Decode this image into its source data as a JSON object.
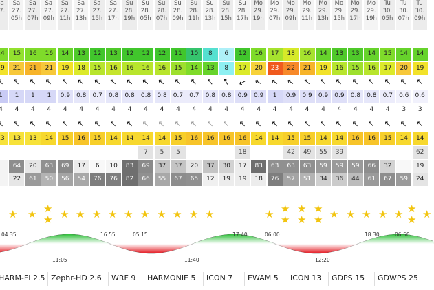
{
  "header": {
    "days": [
      "Sa",
      "Sa",
      "Sa",
      "Sa",
      "Sa",
      "Sa",
      "Sa",
      "Sa",
      "Su",
      "Su",
      "Su",
      "Su",
      "Su",
      "Su",
      "Su",
      "Su",
      "Mo",
      "Mo",
      "Mo",
      "Mo",
      "Mo",
      "Mo",
      "Mo",
      "Mo",
      "Tu",
      "Tu",
      "Tu"
    ],
    "dates": [
      "27.",
      "27.",
      "27.",
      "27.",
      "27.",
      "27.",
      "27.",
      "27.",
      "28.",
      "28.",
      "28.",
      "28.",
      "28.",
      "28.",
      "28.",
      "28.",
      "29.",
      "29.",
      "29.",
      "29.",
      "29.",
      "29.",
      "29.",
      "29.",
      "30.",
      "30.",
      "30."
    ],
    "hours": [
      "",
      "05h",
      "07h",
      "09h",
      "11h",
      "13h",
      "15h",
      "17h",
      "19h",
      "05h",
      "07h",
      "09h",
      "11h",
      "13h",
      "15h",
      "17h",
      "19h",
      "07h",
      "09h",
      "11h",
      "13h",
      "15h",
      "17h",
      "19h",
      "05h",
      "07h",
      "09h"
    ]
  },
  "rows": {
    "wind": {
      "values": [
        "14",
        "15",
        "16",
        "16",
        "14",
        "13",
        "12",
        "13",
        "12",
        "12",
        "12",
        "11",
        "10",
        "8",
        "6",
        "12",
        "16",
        "17",
        "18",
        "16",
        "14",
        "13",
        "13",
        "14",
        "15",
        "14",
        "14"
      ],
      "colors": [
        "#7fdb2a",
        "#93e12e",
        "#7fdb2a",
        "#7fdb2a",
        "#66d32b",
        "#4fc92a",
        "#41c62c",
        "#4fc92a",
        "#41c62c",
        "#41c62c",
        "#41c62c",
        "#41c62c",
        "#35c46d",
        "#55e0d0",
        "#aef0f8",
        "#41c62c",
        "#7fdb2a",
        "#a6e22e",
        "#d6ea29",
        "#a6e22e",
        "#66d32b",
        "#4fc92a",
        "#4fc92a",
        "#66d32b",
        "#7fdb2a",
        "#66d32b",
        "#66d32b"
      ]
    },
    "gust": {
      "values": [
        "19",
        "21",
        "21",
        "21",
        "19",
        "18",
        "15",
        "16",
        "16",
        "16",
        "16",
        "15",
        "14",
        "13",
        "8",
        "17",
        "20",
        "23",
        "22",
        "21",
        "19",
        "16",
        "15",
        "16",
        "17",
        "20",
        "19"
      ],
      "colors": [
        "#f2e22a",
        "#f7c83a",
        "#f7b42a",
        "#f7c83a",
        "#f2e22a",
        "#dcea2a",
        "#b8e52d",
        "#c6e52d",
        "#b8e52d",
        "#b8e52d",
        "#b8e52d",
        "#9ee02e",
        "#7fdb2a",
        "#66d32b",
        "#8ef0f2",
        "#dcea2a",
        "#f7d23a",
        "#f05a1e",
        "#f7892a",
        "#f7b42a",
        "#f2e22a",
        "#b8e52d",
        "#9ee02e",
        "#b8e52d",
        "#dcea2a",
        "#f7c83a",
        "#f2e22a"
      ]
    },
    "winddir": {
      "rotations": [
        -45,
        -45,
        -45,
        -45,
        -45,
        -50,
        -50,
        -50,
        -50,
        -50,
        -50,
        -45,
        -40,
        -40,
        -30,
        -120,
        -60,
        -55,
        -55,
        -50,
        -45,
        -45,
        -45,
        -45,
        -45,
        -45,
        -45
      ]
    },
    "waves": {
      "values": [
        "1",
        "1",
        "1",
        "1",
        "0.9",
        "0.8",
        "0.7",
        "0.8",
        "0.8",
        "0.8",
        "0.8",
        "0.7",
        "0.7",
        "0.8",
        "0.8",
        "0.9",
        "0.9",
        "1",
        "0.9",
        "0.9",
        "0.9",
        "0.9",
        "0.8",
        "0.8",
        "0.7",
        "0.6",
        "0.6"
      ],
      "colors": [
        "#c9cbf5",
        "#d6d8f7",
        "#d6d8f7",
        "#d6d8f7",
        "#e1e2f9",
        "#e6e7fa",
        "#ececfb",
        "#e6e7fa",
        "#e6e7fa",
        "#e6e7fa",
        "#e6e7fa",
        "#ececfb",
        "#ececfb",
        "#e6e7fa",
        "#e6e7fa",
        "#dedff8",
        "#dedff8",
        "#d6d8f7",
        "#dedff8",
        "#dedff8",
        "#dedff8",
        "#dedff8",
        "#e6e7fa",
        "#e6e7fa",
        "#ececfb",
        "#f1f1fc",
        "#f1f1fc"
      ]
    },
    "period": {
      "values": [
        "4",
        "4",
        "4",
        "4",
        "4",
        "4",
        "4",
        "4",
        "4",
        "4",
        "4",
        "4",
        "4",
        "4",
        "4",
        "4",
        "4",
        "4",
        "4",
        "4",
        "4",
        "4",
        "4",
        "4",
        "4",
        "3",
        "3"
      ]
    },
    "wavedir": {
      "rotations": [
        -45,
        -45,
        -45,
        -45,
        -45,
        -45,
        -45,
        -45,
        -45,
        -45,
        -45,
        -45,
        -45,
        -45,
        -45,
        -45,
        -45,
        -45,
        -45,
        -45,
        -45,
        -45,
        -45,
        -45,
        -45,
        -45,
        -45
      ],
      "greyed": [
        false,
        false,
        false,
        false,
        false,
        false,
        false,
        false,
        false,
        true,
        true,
        true,
        true,
        true,
        true,
        false,
        false,
        false,
        false,
        false,
        false,
        false,
        false,
        false,
        false,
        false,
        false
      ]
    },
    "temp": {
      "values": [
        "13",
        "13",
        "13",
        "14",
        "15",
        "16",
        "15",
        "14",
        "14",
        "14",
        "14",
        "15",
        "16",
        "16",
        "16",
        "16",
        "14",
        "14",
        "15",
        "15",
        "14",
        "14",
        "16",
        "16",
        "15",
        "14",
        "14"
      ],
      "colors": [
        "#f7e23a",
        "#f7e23a",
        "#f7e23a",
        "#f7d82e",
        "#f7cf2a",
        "#f7c42a",
        "#f7cf2a",
        "#f7d82e",
        "#f7d82e",
        "#f7d82e",
        "#f7d82e",
        "#f7cf2a",
        "#f7c42a",
        "#f7c42a",
        "#f7c42a",
        "#f7c42a",
        "#f7d82e",
        "#f7d82e",
        "#f7cf2a",
        "#f7cf2a",
        "#f7d82e",
        "#f7d82e",
        "#f7c42a",
        "#f7c42a",
        "#f7cf2a",
        "#f7d82e",
        "#f7d82e"
      ]
    },
    "rain": {
      "values": [
        "",
        "",
        "",
        "",
        "",
        "",
        "",
        "",
        "",
        "7",
        "5",
        "5",
        "",
        "",
        "",
        "18",
        "",
        "",
        "42",
        "49",
        "55",
        "39",
        "",
        "",
        "",
        "",
        "62"
      ]
    },
    "cloud_high": {
      "values": [
        "",
        "64",
        "20",
        "63",
        "69",
        "17",
        "6",
        "10",
        "83",
        "69",
        "37",
        "37",
        "20",
        "37",
        "30",
        "17",
        "83",
        "63",
        "63",
        "63",
        "59",
        "59",
        "59",
        "66",
        "32",
        "",
        "19"
      ],
      "colors": [
        "#f4f4f4",
        "#8d8d8d",
        "#e6e6e6",
        "#909090",
        "#8a8a8a",
        "#ececec",
        "#f8f8f8",
        "#f4f4f4",
        "#6f6f6f",
        "#8a8a8a",
        "#c4c4c4",
        "#c4c4c4",
        "#e6e6e6",
        "#c4c4c4",
        "#d2d2d2",
        "#ececec",
        "#6f6f6f",
        "#909090",
        "#909090",
        "#909090",
        "#9a9a9a",
        "#9a9a9a",
        "#9a9a9a",
        "#8d8d8d",
        "#d2d2d2",
        "#f8f8f8",
        "#ececec"
      ]
    },
    "cloud_low": {
      "values": [
        "",
        "22",
        "61",
        "50",
        "56",
        "54",
        "76",
        "76",
        "82",
        "66",
        "55",
        "67",
        "65",
        "12",
        "19",
        "19",
        "18",
        "76",
        "57",
        "51",
        "34",
        "36",
        "44",
        "61",
        "67",
        "59",
        "24"
      ],
      "colors": [
        "#f4f4f4",
        "#e6e6e6",
        "#9a9a9a",
        "#b3b3b3",
        "#a4a4a4",
        "#a8a8a8",
        "#7e7e7e",
        "#7e7e7e",
        "#6f6f6f",
        "#909090",
        "#a8a8a8",
        "#8d8d8d",
        "#909090",
        "#f0f0f0",
        "#ececec",
        "#ececec",
        "#ececec",
        "#7e7e7e",
        "#a4a4a4",
        "#b3b3b3",
        "#cfcfcf",
        "#cbcbcb",
        "#bcbcbc",
        "#9a9a9a",
        "#8d8d8d",
        "#9a9a9a",
        "#e4e4e4"
      ]
    }
  },
  "sun": {
    "labels": [
      "04:35",
      "11:05",
      "16:55",
      "05:15",
      "11:40",
      "17:40",
      "06:00",
      "12:20",
      "18:30",
      "06:50"
    ]
  },
  "models": [
    "HARM-FI 2.5",
    "Zephr-HD 2.6",
    "WRF 9",
    "HARMONIE 5",
    "ICON 7",
    "EWAM 5",
    "ICON 13",
    "GDPS 15",
    "GDWPS 25"
  ],
  "colors": {
    "star": "#f2c40f",
    "sun_day": "#2fbf3a",
    "sun_night": "#e3151e"
  }
}
